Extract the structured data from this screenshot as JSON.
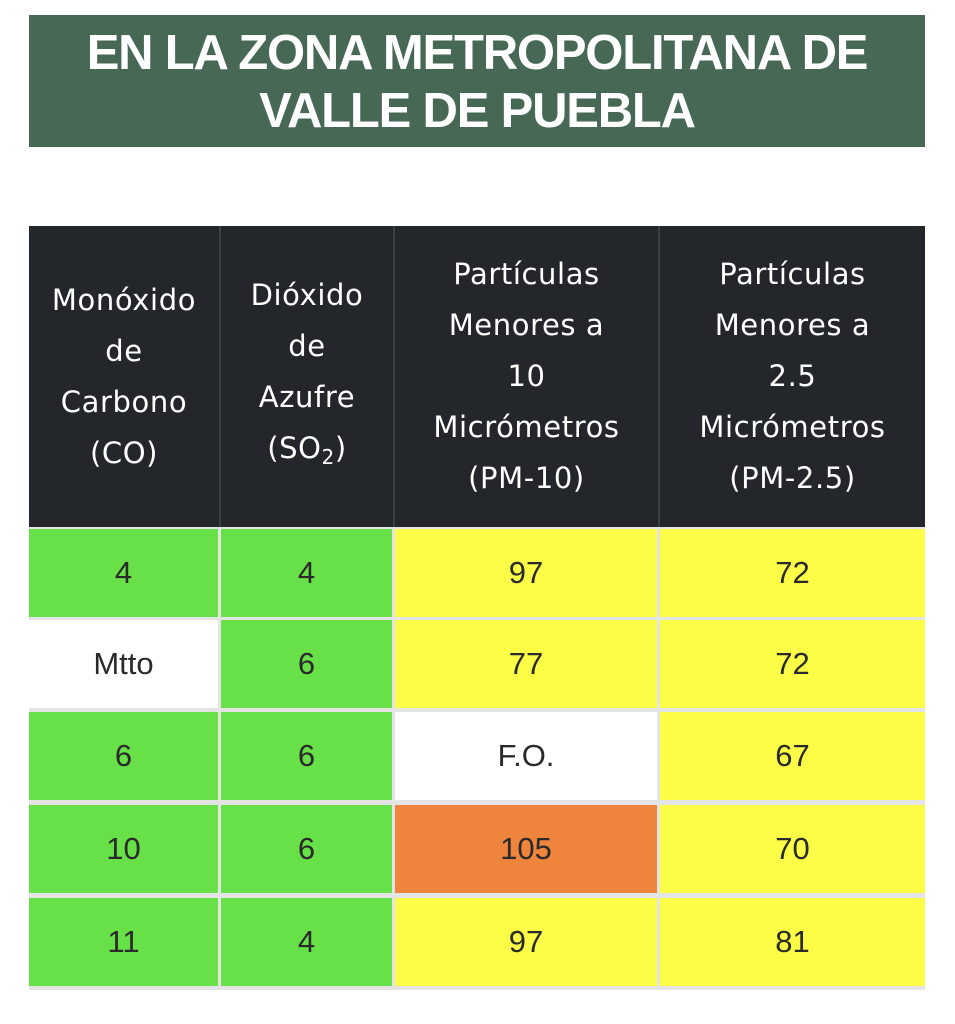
{
  "banner": {
    "line1": "EN LA ZONA METROPOLITANA DE",
    "line2": "VALLE DE PUEBLA"
  },
  "table": {
    "headers": [
      {
        "lines": [
          "Monóxido",
          "de",
          "Carbono",
          "(CO)"
        ]
      },
      {
        "lines": [
          "Dióxido",
          "de",
          "Azufre"
        ],
        "formula_prefix": "(SO",
        "formula_sub": "2",
        "formula_suffix": ")"
      },
      {
        "lines": [
          "Partículas",
          "Menores a",
          "10",
          "Micrómetros",
          "(PM-10)"
        ]
      },
      {
        "lines": [
          "Partículas",
          "Menores a",
          "2.5",
          "Micrómetros",
          "(PM-2.5)"
        ]
      }
    ],
    "rows": [
      [
        "4",
        "4",
        "97",
        "72"
      ],
      [
        "Mtto",
        "6",
        "77",
        "72"
      ],
      [
        "6",
        "6",
        "F.O.",
        "67"
      ],
      [
        "10",
        "6",
        "105",
        "70"
      ],
      [
        "11",
        "4",
        "97",
        "81"
      ]
    ],
    "cell_colors": [
      [
        "green",
        "green",
        "yellow",
        "yellow"
      ],
      [
        "white",
        "green",
        "yellow",
        "yellow"
      ],
      [
        "green",
        "green",
        "white",
        "yellow"
      ],
      [
        "green",
        "green",
        "orange",
        "yellow"
      ],
      [
        "green",
        "green",
        "yellow",
        "yellow"
      ]
    ]
  },
  "colors": {
    "banner_bg": "#486856",
    "header_bg": "#23272b",
    "green": "#68e048",
    "yellow": "#fbfd47",
    "orange": "#ef843c",
    "white": "#ffffff"
  }
}
